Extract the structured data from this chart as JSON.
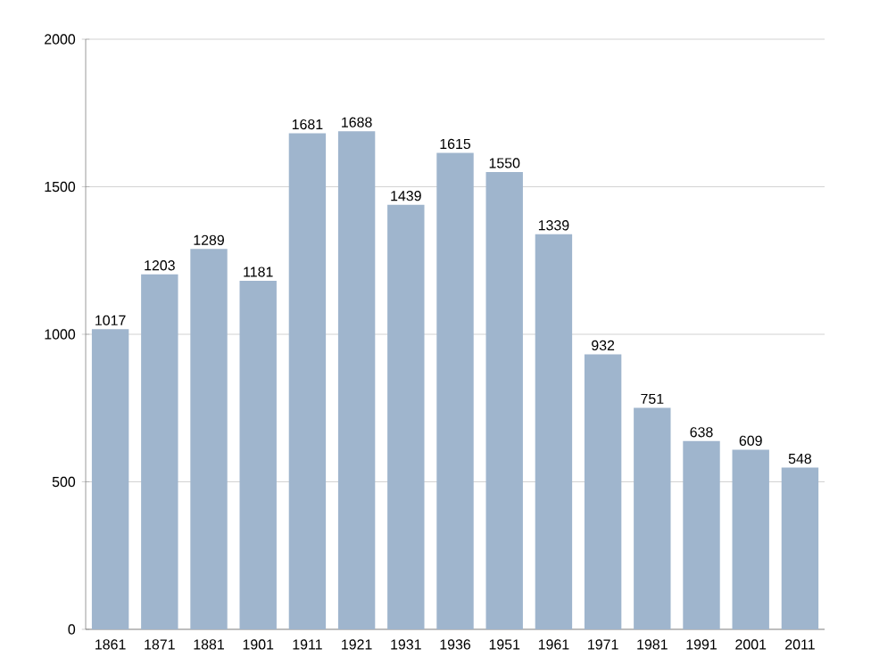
{
  "chart_data": {
    "type": "bar",
    "categories": [
      "1861",
      "1871",
      "1881",
      "1901",
      "1911",
      "1921",
      "1931",
      "1936",
      "1951",
      "1961",
      "1971",
      "1981",
      "1991",
      "2001",
      "2011"
    ],
    "values": [
      1017,
      1203,
      1289,
      1181,
      1681,
      1688,
      1439,
      1615,
      1550,
      1339,
      932,
      751,
      638,
      609,
      548
    ],
    "color": "#9fb5cd",
    "ylim": [
      0,
      2000
    ],
    "yticks": [
      0,
      500,
      1000,
      1500,
      2000
    ],
    "grid": "y",
    "data_labels": true
  }
}
